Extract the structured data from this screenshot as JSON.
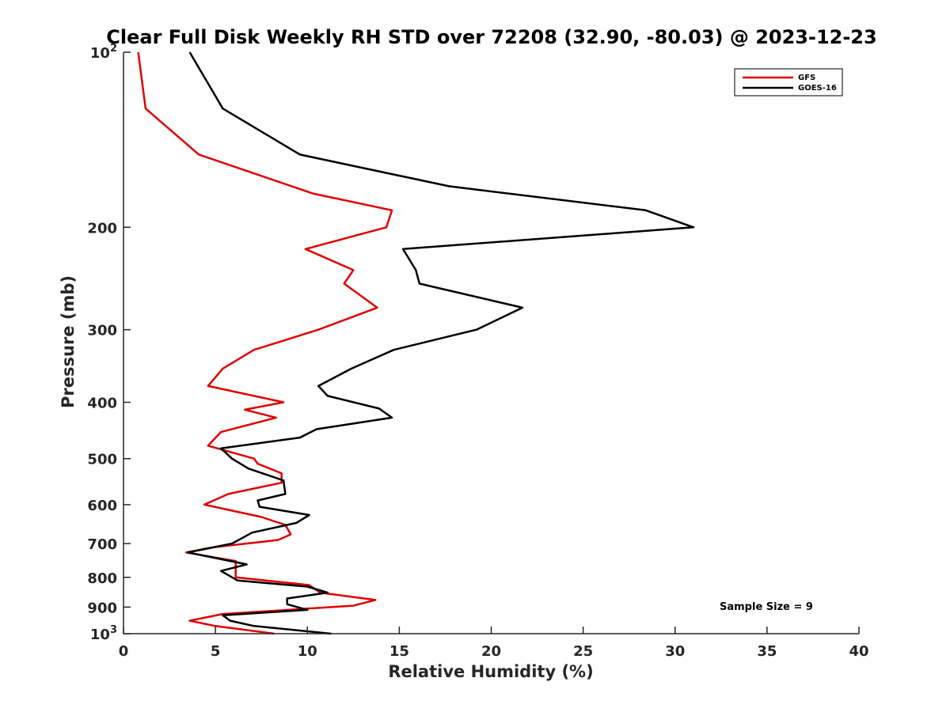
{
  "chart_data": {
    "type": "line",
    "title": "Clear Full Disk Weekly RH STD over 72208 (32.90, -80.03) @ 2023-12-23",
    "xlabel": "Relative Humidity (%)",
    "ylabel": "Pressure (mb)",
    "xlim": [
      0,
      40
    ],
    "ylim": [
      100,
      1000
    ],
    "y_scale": "log",
    "y_reversed": true,
    "x_ticks": [
      0,
      5,
      10,
      15,
      20,
      25,
      30,
      35,
      40
    ],
    "x_tick_labels": [
      "0",
      "5",
      "10",
      "15",
      "20",
      "25",
      "30",
      "35",
      "40"
    ],
    "y_ticks": [
      100,
      200,
      300,
      400,
      500,
      600,
      700,
      800,
      900,
      1000
    ],
    "y_tick_labels": [
      "10^2",
      "200",
      "300",
      "400",
      "500",
      "600",
      "700",
      "800",
      "900",
      "10^3"
    ],
    "y_tick_base": "10",
    "y_tick_exponent": "2",
    "y_tick_exponent_bottom": "3",
    "legend_position": "top-right",
    "grid": false,
    "annotation": "Sample Size = 9",
    "series": [
      {
        "name": "GFS",
        "color": "#e00000",
        "points": [
          [
            0.8,
            100
          ],
          [
            1.2,
            125
          ],
          [
            4.1,
            150
          ],
          [
            10.3,
            175
          ],
          [
            14.6,
            187
          ],
          [
            14.3,
            200
          ],
          [
            9.9,
            218
          ],
          [
            12.5,
            237
          ],
          [
            12.0,
            250
          ],
          [
            13.8,
            275
          ],
          [
            10.6,
            300
          ],
          [
            7.1,
            325
          ],
          [
            5.4,
            350
          ],
          [
            4.6,
            375
          ],
          [
            8.7,
            400
          ],
          [
            6.6,
            412
          ],
          [
            8.3,
            425
          ],
          [
            5.3,
            450
          ],
          [
            4.6,
            475
          ],
          [
            7.1,
            500
          ],
          [
            7.3,
            510
          ],
          [
            8.6,
            530
          ],
          [
            8.6,
            550
          ],
          [
            5.7,
            575
          ],
          [
            4.4,
            600
          ],
          [
            7.5,
            630
          ],
          [
            8.8,
            650
          ],
          [
            9.1,
            675
          ],
          [
            8.4,
            690
          ],
          [
            4.9,
            710
          ],
          [
            3.4,
            725
          ],
          [
            6.1,
            750
          ],
          [
            6.1,
            770
          ],
          [
            6.1,
            800
          ],
          [
            10.1,
            825
          ],
          [
            10.7,
            850
          ],
          [
            13.7,
            875
          ],
          [
            12.5,
            895
          ],
          [
            5.4,
            925
          ],
          [
            3.6,
            950
          ],
          [
            5.0,
            970
          ],
          [
            8.2,
            1000
          ]
        ]
      },
      {
        "name": "GOES-16",
        "color": "#000000",
        "points": [
          [
            3.6,
            100
          ],
          [
            5.4,
            125
          ],
          [
            9.6,
            150
          ],
          [
            17.7,
            170
          ],
          [
            28.4,
            187
          ],
          [
            31.0,
            200
          ],
          [
            15.2,
            218
          ],
          [
            15.9,
            237
          ],
          [
            16.1,
            250
          ],
          [
            21.7,
            275
          ],
          [
            19.2,
            300
          ],
          [
            14.7,
            325
          ],
          [
            12.4,
            350
          ],
          [
            10.6,
            375
          ],
          [
            11.1,
            390
          ],
          [
            13.9,
            410
          ],
          [
            14.6,
            425
          ],
          [
            10.5,
            445
          ],
          [
            9.6,
            460
          ],
          [
            5.3,
            480
          ],
          [
            5.9,
            500
          ],
          [
            6.8,
            520
          ],
          [
            8.7,
            545
          ],
          [
            8.8,
            575
          ],
          [
            7.3,
            590
          ],
          [
            7.4,
            605
          ],
          [
            10.1,
            625
          ],
          [
            9.4,
            645
          ],
          [
            7.0,
            670
          ],
          [
            5.9,
            700
          ],
          [
            3.5,
            725
          ],
          [
            6.7,
            760
          ],
          [
            5.3,
            780
          ],
          [
            6.2,
            810
          ],
          [
            10.0,
            830
          ],
          [
            11.1,
            850
          ],
          [
            8.9,
            870
          ],
          [
            8.9,
            890
          ],
          [
            10.0,
            910
          ],
          [
            5.4,
            930
          ],
          [
            5.8,
            950
          ],
          [
            7.1,
            970
          ],
          [
            11.3,
            1000
          ]
        ]
      }
    ]
  }
}
